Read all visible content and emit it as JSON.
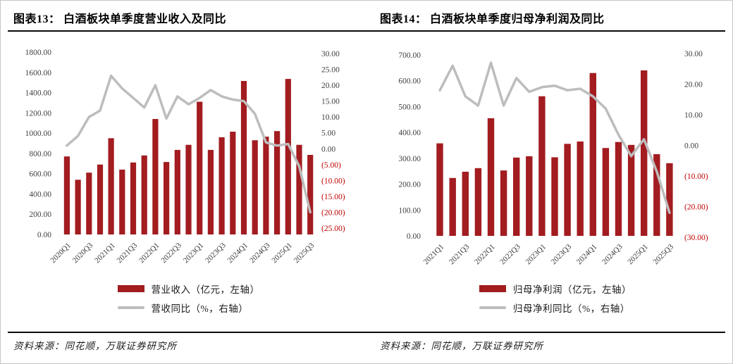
{
  "colors": {
    "bar": "#a21c20",
    "line": "#bdbdbd",
    "axis_text": "#3f3f3f",
    "axis_text_negative": "#c00000",
    "title_text": "#000000",
    "rule": "#0a0a0a"
  },
  "figures": [
    {
      "title": "图表13： 白酒板块单季度营业收入及同比",
      "legend": [
        {
          "swatch": "bar-swatch",
          "label": "营业收入（亿元，左轴）"
        },
        {
          "swatch": "line-swatch",
          "label": "营收同比（%，右轴）"
        }
      ],
      "source": "资料来源：同花顺，万联证券研究所"
    },
    {
      "title": "图表14： 白酒板块单季度归母净利润及同比",
      "legend": [
        {
          "swatch": "bar-swatch",
          "label": "归母净利润（亿元，左轴）"
        },
        {
          "swatch": "line-swatch",
          "label": "归母净利同比（%，右轴）"
        }
      ],
      "source": "资料来源：同花顺，万联证券研究所"
    }
  ],
  "chart_data": [
    {
      "type": "bar+line",
      "title": "白酒板块单季度营业收入及同比",
      "categories": [
        "2020Q1",
        "2020Q2",
        "2020Q3",
        "2020Q4",
        "2021Q1",
        "2021Q2",
        "2021Q3",
        "2021Q4",
        "2022Q1",
        "2022Q2",
        "2022Q3",
        "2022Q4",
        "2023Q1",
        "2023Q2",
        "2023Q3",
        "2023Q4",
        "2024Q1",
        "2024Q2",
        "2024Q3",
        "2024Q4",
        "2025Q1",
        "2025Q2",
        "2025Q3"
      ],
      "x_tick_labels": [
        "2020Q1",
        "2020Q3",
        "2021Q1",
        "2021Q3",
        "2022Q1",
        "2022Q3",
        "2023Q1",
        "2023Q3",
        "2024Q1",
        "2024Q3",
        "2025Q1",
        "2025Q3"
      ],
      "x_tick_every": 2,
      "series": [
        {
          "name": "营业收入（亿元，左轴）",
          "type": "bar",
          "axis": "left",
          "values": [
            770,
            540,
            610,
            690,
            950,
            640,
            710,
            780,
            1140,
            715,
            835,
            885,
            1310,
            835,
            960,
            1015,
            1515,
            930,
            965,
            1020,
            1535,
            885,
            785
          ]
        },
        {
          "name": "营收同比（%，右轴）",
          "type": "line",
          "axis": "right",
          "values": [
            1,
            4,
            10,
            12,
            23,
            19,
            16,
            13,
            20,
            9.5,
            16.5,
            14,
            16,
            18.5,
            16.5,
            15.5,
            15,
            11,
            2,
            1,
            1.5,
            -5.5,
            -20
          ]
        }
      ],
      "left_axis": {
        "min": 0,
        "max": 1800,
        "step": 200,
        "tick_labels": [
          "0.00",
          "200.00",
          "400.00",
          "600.00",
          "800.00",
          "1000.00",
          "1200.00",
          "1400.00",
          "1600.00",
          "1800.00"
        ]
      },
      "right_axis": {
        "min": -25,
        "max": 30,
        "step": 5,
        "tick_labels": [
          "(25.00)",
          "(20.00)",
          "(15.00)",
          "(10.00)",
          "(5.00)",
          "0.00",
          "5.00",
          "10.00",
          "15.00",
          "20.00",
          "25.00",
          "30.00"
        ]
      },
      "grid": false,
      "legend_position": "bottom"
    },
    {
      "type": "bar+line",
      "title": "白酒板块单季度归母净利润及同比",
      "categories": [
        "2021Q1",
        "2021Q2",
        "2021Q3",
        "2021Q4",
        "2022Q1",
        "2022Q2",
        "2022Q3",
        "2022Q4",
        "2023Q1",
        "2023Q2",
        "2023Q3",
        "2023Q4",
        "2024Q1",
        "2024Q2",
        "2024Q3",
        "2024Q4",
        "2025Q1",
        "2025Q2",
        "2025Q3"
      ],
      "x_tick_labels": [
        "2021Q1",
        "2021Q3",
        "2022Q1",
        "2022Q3",
        "2023Q1",
        "2023Q3",
        "2024Q1",
        "2024Q3",
        "2025Q1",
        "2025Q3"
      ],
      "x_tick_every": 2,
      "series": [
        {
          "name": "归母净利润（亿元，左轴）",
          "type": "bar",
          "axis": "left",
          "values": [
            358,
            224,
            248,
            262,
            455,
            253,
            303,
            308,
            540,
            304,
            356,
            365,
            630,
            340,
            363,
            352,
            640,
            316,
            281
          ]
        },
        {
          "name": "归母净利同比（%，右轴）",
          "type": "line",
          "axis": "right",
          "values": [
            18,
            26,
            16,
            13,
            27,
            13,
            22,
            17.5,
            19,
            19.5,
            18,
            18.5,
            16,
            12,
            3.5,
            -3.5,
            2,
            -8.5,
            -22
          ]
        }
      ],
      "left_axis": {
        "min": 0,
        "max": 700,
        "step": 100,
        "tick_labels": [
          "0.00",
          "100.00",
          "200.00",
          "300.00",
          "400.00",
          "500.00",
          "600.00",
          "700.00"
        ]
      },
      "right_axis": {
        "min": -30,
        "max": 30,
        "step": 10,
        "tick_labels": [
          "(30.00)",
          "(20.00)",
          "(10.00)",
          "0.00",
          "10.00",
          "20.00",
          "30.00"
        ]
      },
      "grid": false,
      "legend_position": "bottom"
    }
  ]
}
